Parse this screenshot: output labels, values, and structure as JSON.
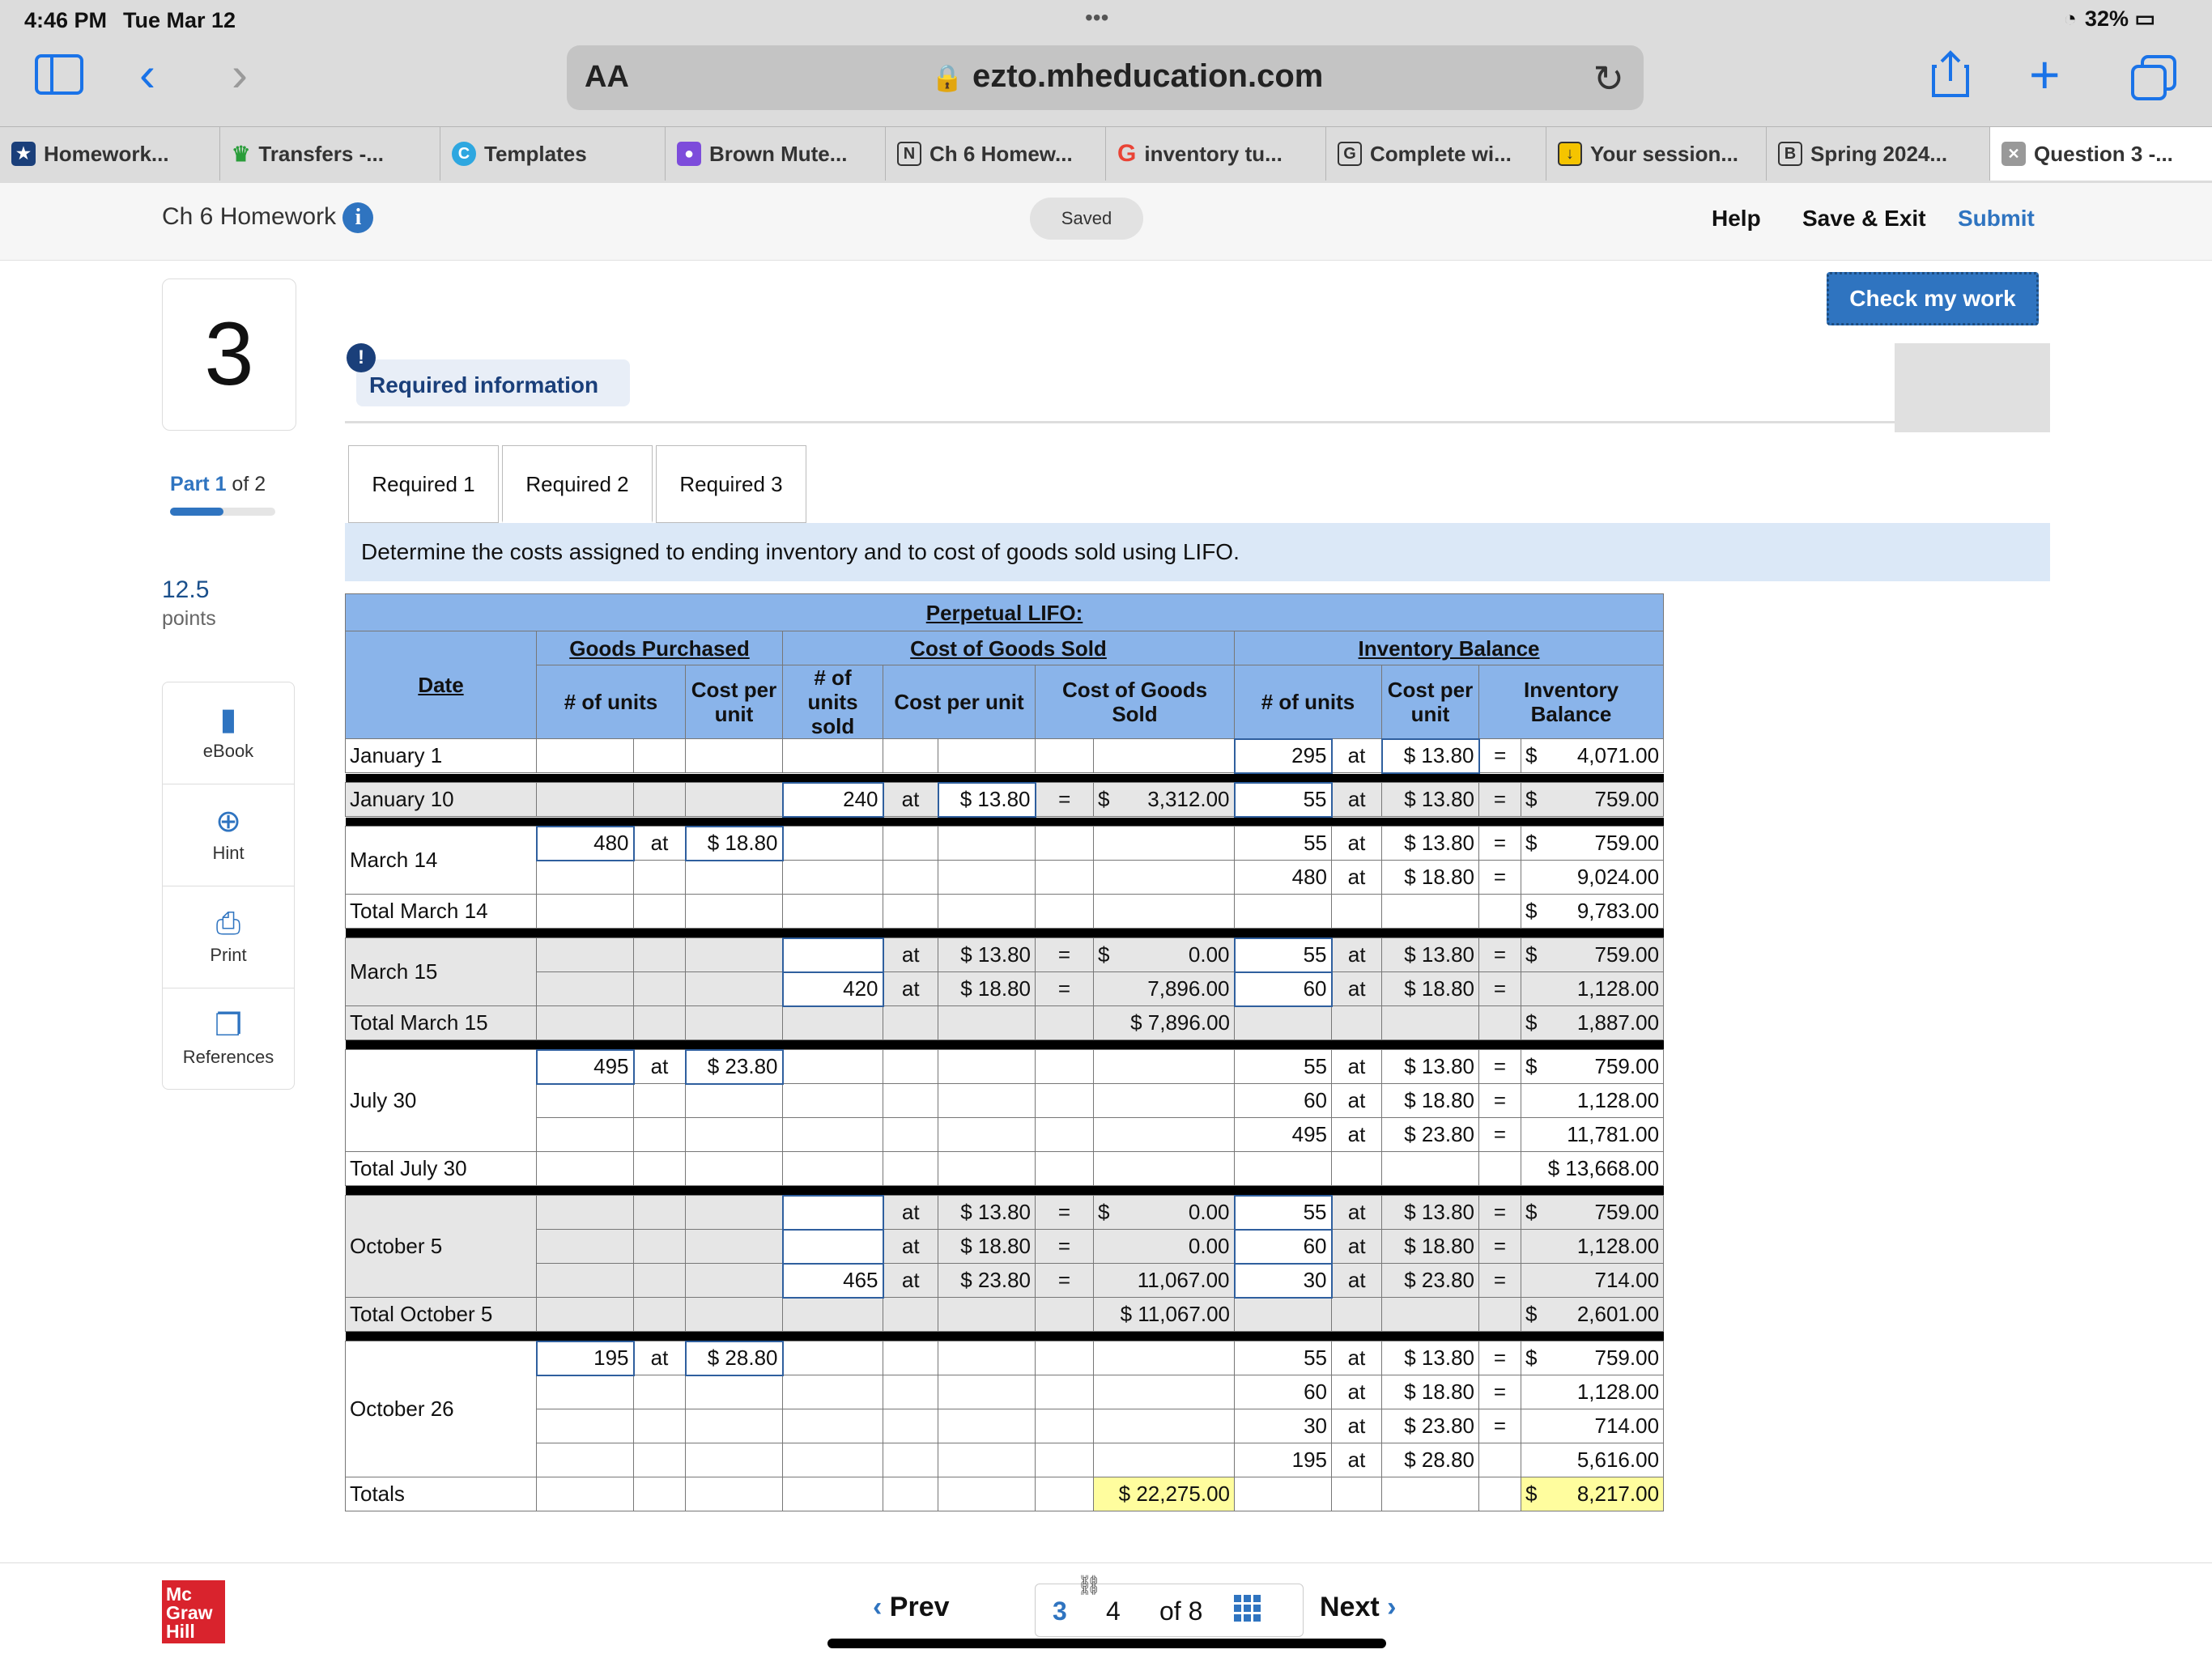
{
  "status": {
    "time": "4:46 PM",
    "date": "Tue Mar 12",
    "battery": "32%"
  },
  "browser": {
    "aa": "AA",
    "url": "ezto.mheducation.com",
    "dots": "•••"
  },
  "tabs": [
    "Homework...",
    "Transfers -...",
    "Templates",
    "Brown Mute...",
    "Ch 6 Homew...",
    "inventory tu...",
    "Complete wi...",
    "Your session...",
    "Spring 2024...",
    "Question 3 -..."
  ],
  "header": {
    "title": "Ch 6 Homework",
    "saved": "Saved",
    "help": "Help",
    "save_exit": "Save & Exit",
    "submit": "Submit"
  },
  "question": {
    "number": "3",
    "part_prefix": "Part 1",
    "part_suffix": " of 2",
    "points_value": "12.5",
    "points_label": "points"
  },
  "tools": [
    "eBook",
    "Hint",
    "Print",
    "References"
  ],
  "check_my_work": "Check my work",
  "required_info": "Required information",
  "req_tabs": [
    "Required 1",
    "Required 2",
    "Required 3"
  ],
  "instruction": "Determine the costs assigned to ending inventory and to cost of goods sold using LIFO.",
  "table": {
    "title": "Perpetual LIFO:",
    "groups": {
      "purchased": "Goods Purchased",
      "cogs": "Cost of Goods Sold",
      "balance": "Inventory Balance"
    },
    "cols": {
      "date": "Date",
      "units": "# of units",
      "cpu": "Cost per unit",
      "units_sold": "# of units sold",
      "cogs": "Cost of Goods Sold",
      "inv_bal": "Inventory Balance"
    },
    "labels": {
      "jan1": "January 1",
      "jan10": "January 10",
      "mar14": "March 14",
      "mar14t": "Total March 14",
      "mar15": "March 15",
      "mar15t": "Total March 15",
      "jul30": "July 30",
      "jul30t": "Total July 30",
      "oct5": "October 5",
      "oct5t": "Total October 5",
      "oct26": "October 26",
      "totals": "Totals"
    },
    "at": "at",
    "eq": "=",
    "dollar": "$",
    "v": {
      "b295": "295",
      "p1380": "$ 13.80",
      "b4071": "4,071.00",
      "s240": "240",
      "c3312": "3,312.00",
      "b55": "55",
      "b759": "759.00",
      "p480": "480",
      "p1880": "$ 18.80",
      "b480": "480",
      "b9024": "9,024.00",
      "b9783": "9,783.00",
      "z0": "0.00",
      "s420": "420",
      "c7896": "7,896.00",
      "b60": "60",
      "b1128": "1,128.00",
      "t7896": "$ 7,896.00",
      "b1887": "1,887.00",
      "p495": "495",
      "p2380": "$ 23.80",
      "b495": "495",
      "b11781": "11,781.00",
      "b13668": "$ 13,668.00",
      "s465": "465",
      "c11067": "11,067.00",
      "b30": "30",
      "b714": "714.00",
      "t11067": "$ 11,067.00",
      "b2601": "2,601.00",
      "p195": "195",
      "p2880": "$ 28.80",
      "b195": "195",
      "b5616": "5,616.00",
      "cogs_total": "$ 22,275.00",
      "inv_total": "8,217.00"
    }
  },
  "nav": {
    "prev": "Prev",
    "current": "3",
    "page4": "4",
    "of": "of 8",
    "next": "Next"
  },
  "logo": [
    "Mc",
    "Graw",
    "Hill"
  ],
  "colors": {
    "accent": "#2f74c0",
    "header_blue": "#8ab4ea",
    "instruction_bg": "#dbe8f7",
    "highlight": "#fffd9e"
  }
}
